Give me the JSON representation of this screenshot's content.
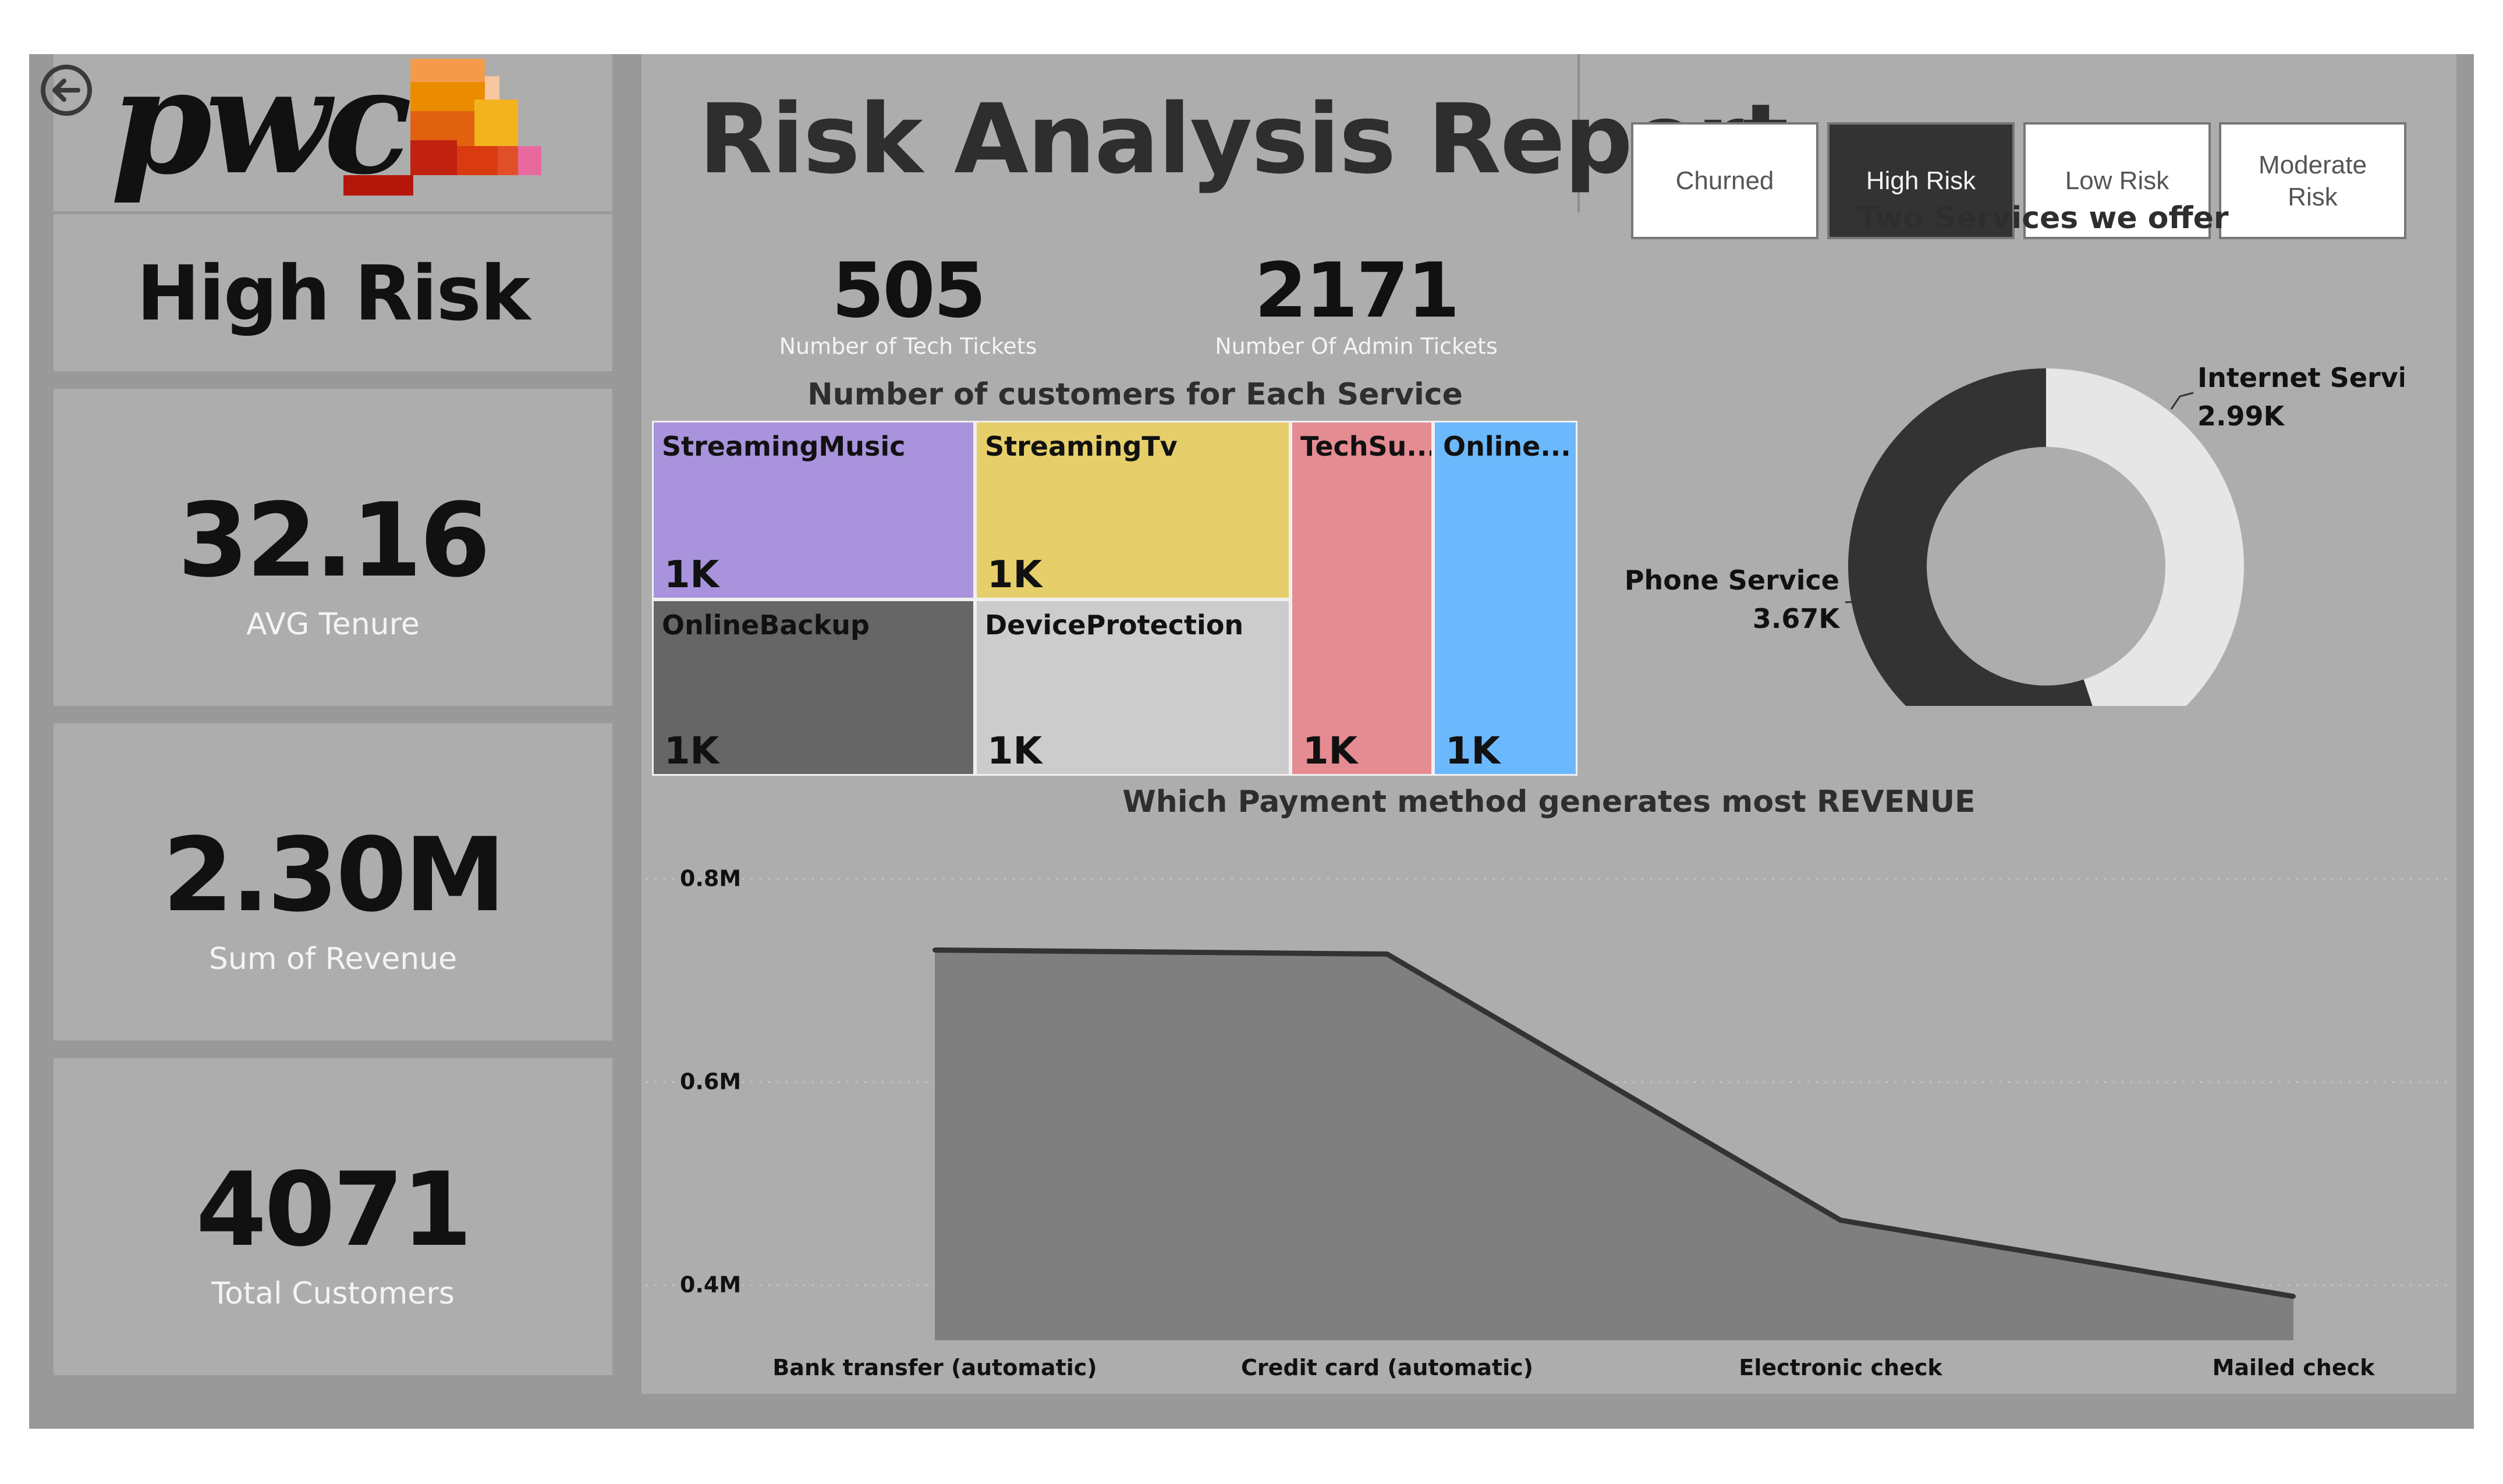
{
  "header": {
    "title": "Risk Analysis Report",
    "logo_text": "pwc",
    "back_icon": "back-arrow-icon"
  },
  "slicer": {
    "buttons": [
      {
        "label": "Churned",
        "selected": false
      },
      {
        "label": "High Risk",
        "selected": true
      },
      {
        "label": "Low Risk",
        "selected": false
      },
      {
        "label": "Moderate Risk",
        "selected": false
      }
    ]
  },
  "left_panel": {
    "segment_title": "High Risk",
    "avg_tenure": {
      "value": "32.16",
      "label": "AVG Tenure"
    },
    "revenue": {
      "value": "2.30M",
      "label": "Sum of Revenue"
    },
    "customers": {
      "value": "4071",
      "label": "Total Customers"
    }
  },
  "tickets": {
    "tech": {
      "value": "505",
      "label": "Number of Tech Tickets"
    },
    "admin": {
      "value": "2171",
      "label": "Number Of Admin Tickets"
    }
  },
  "treemap": {
    "title": "Number of customers for Each Service",
    "items": [
      {
        "name": "StreamingMusic",
        "value": "1K",
        "color": "#a993dc"
      },
      {
        "name": "StreamingTv",
        "value": "1K",
        "color": "#e6cf6a"
      },
      {
        "name": "OnlineBackup",
        "value": "1K",
        "color": "#666666"
      },
      {
        "name": "DeviceProtection",
        "value": "1K",
        "color": "#cccccc"
      },
      {
        "name": "TechSu...",
        "value": "1K",
        "color": "#e58b92"
      },
      {
        "name": "Online...",
        "value": "1K",
        "color": "#6cb8fc"
      }
    ]
  },
  "chart_data": [
    {
      "type": "pie",
      "title": "Two Services we offer",
      "donut": true,
      "categories": [
        "Internet Service",
        "Phone Service"
      ],
      "values": [
        2990,
        3670
      ],
      "value_labels": [
        "2.99K",
        "3.67K"
      ],
      "colors": [
        "#e6e6e6",
        "#333333"
      ]
    },
    {
      "type": "area",
      "title": "Which Payment method generates most REVENUE",
      "categories": [
        "Bank transfer (automatic)",
        "Credit card (automatic)",
        "Electronic check",
        "Mailed check"
      ],
      "values": [
        0.73,
        0.726,
        0.464,
        0.389
      ],
      "ylim": [
        0.3,
        0.85
      ],
      "yticks": [
        0.4,
        0.6,
        0.8
      ],
      "ytick_labels": [
        "0.4M",
        "0.6M",
        "0.8M"
      ],
      "grid": true,
      "xlabel": "",
      "ylabel": "",
      "line_color": "#333333",
      "fill_color": "#7f7f7f"
    }
  ],
  "colors": {
    "canvas_bg": "#999999",
    "tile_bg": "#adadad",
    "logo_orange": "#e0620f",
    "logo_yellow": "#f2b31f",
    "logo_red": "#c0220f"
  }
}
